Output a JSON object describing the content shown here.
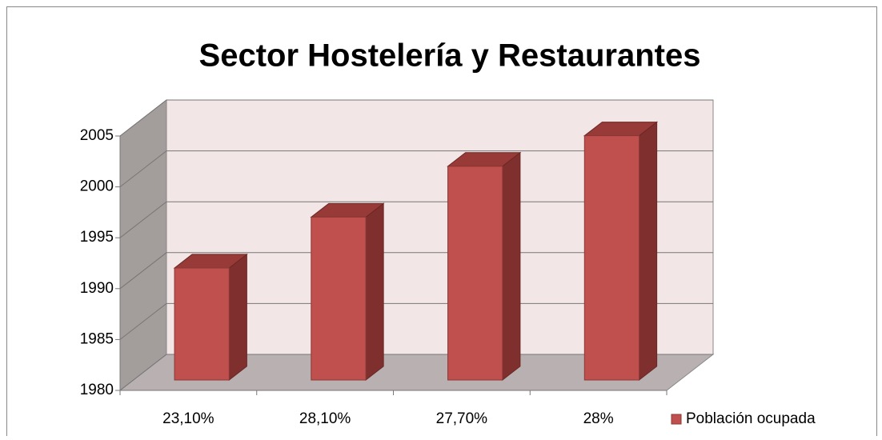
{
  "chart_data": {
    "type": "bar3d",
    "title": "Sector Hostelería y Restaurantes",
    "categories": [
      "23,10%",
      "28,10%",
      "27,70%",
      "28%"
    ],
    "series": [
      {
        "name": "Población ocupada",
        "color": "#c0504d",
        "values": [
          1991,
          1996,
          2001,
          2004
        ]
      }
    ],
    "ylim": [
      1980,
      2005
    ],
    "yticks": [
      1980,
      1985,
      1990,
      1995,
      2000,
      2005
    ],
    "grid": true,
    "legend": "right"
  }
}
